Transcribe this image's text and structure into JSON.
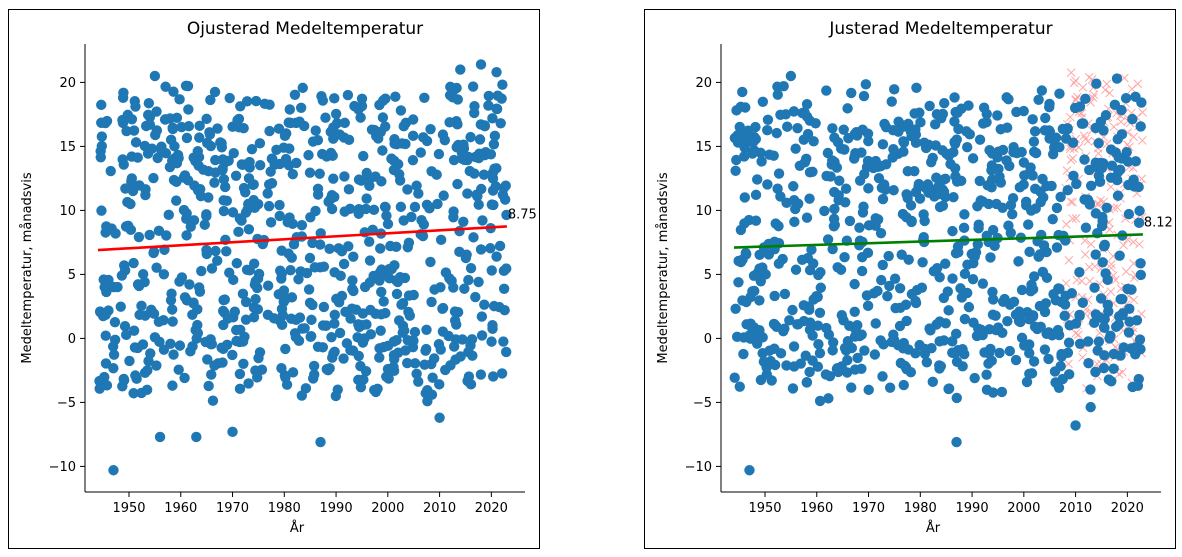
{
  "chart_data": [
    {
      "type": "scatter",
      "title": "Ojusterad Medeltemperatur",
      "xlabel": "År",
      "ylabel": "Medeltemperatur, månadsvis",
      "xlim": [
        1941.5,
        2026.5
      ],
      "ylim": [
        -12,
        23
      ],
      "xticks": [
        1950,
        1960,
        1970,
        1980,
        1990,
        2000,
        2010,
        2020
      ],
      "yticks": [
        -10,
        -5,
        0,
        5,
        10,
        15,
        20
      ],
      "marker_color": "#1f77b4",
      "x_range": [
        1944,
        2023
      ],
      "trend": {
        "x": [
          1944,
          2023
        ],
        "y": [
          6.9,
          8.75
        ],
        "color": "#ff0000"
      },
      "end_label": "8.75",
      "notable_points": [
        {
          "x": 1947,
          "y": -10.3
        },
        {
          "x": 1955,
          "y": 20.5
        },
        {
          "x": 2014,
          "y": 21.0
        },
        {
          "x": 2018,
          "y": 21.4
        },
        {
          "x": 2021,
          "y": 20.8
        },
        {
          "x": 1987,
          "y": -8.1
        },
        {
          "x": 1956,
          "y": -7.7
        },
        {
          "x": 1963,
          "y": -7.7
        },
        {
          "x": 1970,
          "y": -7.3
        },
        {
          "x": 2010,
          "y": -6.2
        }
      ],
      "grid": false,
      "legend": "none"
    },
    {
      "type": "scatter",
      "title": "Justerad Medeltemperatur",
      "xlabel": "År",
      "ylabel": "Medeltemperatur, månadsvis",
      "xlim": [
        1941.5,
        2026.5
      ],
      "ylim": [
        -12,
        23
      ],
      "xticks": [
        1950,
        1960,
        1970,
        1980,
        1990,
        2000,
        2010,
        2020
      ],
      "yticks": [
        -10,
        -5,
        0,
        5,
        10,
        15,
        20
      ],
      "marker_color": "#1f77b4",
      "cross_color": "#ff9999",
      "x_range": [
        1944,
        2023
      ],
      "adjusted_range": [
        2008,
        2023
      ],
      "trend": {
        "x": [
          1944,
          2023
        ],
        "y": [
          7.1,
          8.12
        ],
        "color": "#008000"
      },
      "end_label": "8.12",
      "notable_points": [
        {
          "x": 1947,
          "y": -10.3
        },
        {
          "x": 1955,
          "y": 20.5
        },
        {
          "x": 2018,
          "y": 20.3
        },
        {
          "x": 2014,
          "y": 19.9
        },
        {
          "x": 1987,
          "y": -8.1
        },
        {
          "x": 2010,
          "y": -6.8
        }
      ],
      "grid": false,
      "legend": "none"
    }
  ]
}
